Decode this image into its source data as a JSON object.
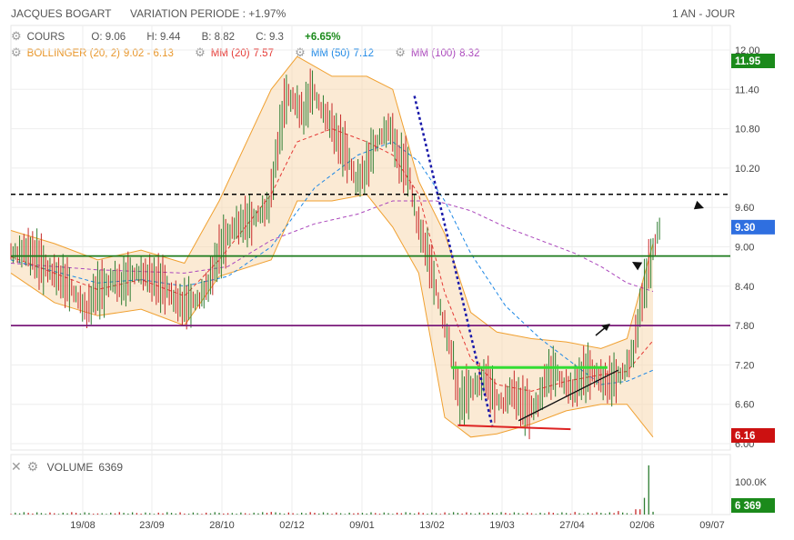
{
  "header": {
    "title": "JACQUES BOGART",
    "variation": "VARIATION PERIODE : +1.97%",
    "period": "1 AN - JOUR"
  },
  "legend": {
    "cours": "COURS",
    "open": "O: 9.06",
    "high": "H: 9.44",
    "low": "B: 8.82",
    "close": "C: 9.3",
    "change": "+6.65%",
    "bollinger": "BOLLINGER (20, 2)",
    "bollinger_vals": "9.02 - 6.13",
    "mm20": "MM (20)",
    "mm20_val": "7.57",
    "mm50": "MM (50)",
    "mm50_val": "7.12",
    "mm100": "MM (100)",
    "mm100_val": "8.32"
  },
  "volume_legend": {
    "label": "VOLUME",
    "value": "6369"
  },
  "colors": {
    "up": "#2e7d32",
    "down": "#c62828",
    "bollinger": "#f0a030",
    "mm20": "#e53935",
    "mm50": "#1e88e5",
    "mm100": "#ab47bc",
    "last_high": "#1b8a1b",
    "last_price": "#2f6fe0",
    "last_low": "#cc1111"
  },
  "badges": {
    "high": "11.95",
    "last": "9.30",
    "low": "6.16",
    "vol_axis": "100.0K",
    "vol_last": "6 369"
  },
  "chart_data": {
    "type": "candlestick",
    "y_ticks": [
      "12.00",
      "11.40",
      "10.80",
      "10.20",
      "9.60",
      "9.00",
      "8.40",
      "7.80",
      "7.20",
      "6.60",
      "6.00"
    ],
    "ylim": [
      6.0,
      12.0
    ],
    "x_ticks": [
      "19/08",
      "23/09",
      "28/10",
      "02/12",
      "09/01",
      "13/02",
      "19/03",
      "27/04",
      "02/06",
      "09/07"
    ],
    "series_close": [
      [
        0,
        8.9
      ],
      [
        4,
        8.95
      ],
      [
        8,
        8.85
      ],
      [
        12,
        8.7
      ],
      [
        16,
        8.6
      ],
      [
        20,
        8.5
      ],
      [
        24,
        8.4
      ],
      [
        28,
        8.2
      ],
      [
        32,
        8.0
      ],
      [
        36,
        8.3
      ],
      [
        40,
        8.35
      ],
      [
        44,
        8.5
      ],
      [
        48,
        8.4
      ],
      [
        52,
        8.55
      ],
      [
        56,
        8.6
      ],
      [
        60,
        8.55
      ],
      [
        64,
        8.45
      ],
      [
        68,
        8.4
      ],
      [
        72,
        8.2
      ],
      [
        76,
        8.1
      ],
      [
        80,
        8.15
      ],
      [
        84,
        8.2
      ],
      [
        88,
        8.4
      ],
      [
        92,
        8.8
      ],
      [
        96,
        9.1
      ],
      [
        100,
        9.3
      ],
      [
        104,
        9.35
      ],
      [
        108,
        9.4
      ],
      [
        112,
        9.5
      ],
      [
        116,
        9.6
      ],
      [
        120,
        10.5
      ],
      [
        124,
        11.3
      ],
      [
        128,
        11.2
      ],
      [
        132,
        11.0
      ],
      [
        136,
        11.4
      ],
      [
        140,
        11.1
      ],
      [
        144,
        10.9
      ],
      [
        148,
        10.6
      ],
      [
        152,
        10.4
      ],
      [
        156,
        10.0
      ],
      [
        160,
        10.1
      ],
      [
        164,
        10.5
      ],
      [
        168,
        10.7
      ],
      [
        172,
        10.8
      ],
      [
        176,
        10.3
      ],
      [
        180,
        10.2
      ],
      [
        184,
        9.4
      ],
      [
        188,
        9.0
      ],
      [
        192,
        8.5
      ],
      [
        196,
        7.9
      ],
      [
        200,
        7.4
      ],
      [
        204,
        6.6
      ],
      [
        208,
        6.8
      ],
      [
        212,
        6.9
      ],
      [
        216,
        7.0
      ],
      [
        220,
        6.7
      ],
      [
        224,
        6.6
      ],
      [
        228,
        6.8
      ],
      [
        232,
        6.6
      ],
      [
        236,
        6.5
      ],
      [
        240,
        6.6
      ],
      [
        244,
        7.0
      ],
      [
        248,
        7.1
      ],
      [
        252,
        6.9
      ],
      [
        256,
        6.8
      ],
      [
        260,
        7.0
      ],
      [
        264,
        7.1
      ],
      [
        268,
        7.0
      ],
      [
        272,
        6.9
      ],
      [
        276,
        7.0
      ],
      [
        280,
        7.1
      ],
      [
        284,
        7.4
      ],
      [
        288,
        8.2
      ],
      [
        292,
        8.8
      ],
      [
        296,
        9.3
      ]
    ],
    "bollinger_upper": [
      [
        0,
        9.25
      ],
      [
        20,
        9.05
      ],
      [
        40,
        8.8
      ],
      [
        60,
        8.95
      ],
      [
        80,
        8.75
      ],
      [
        96,
        9.7
      ],
      [
        120,
        11.4
      ],
      [
        132,
        11.9
      ],
      [
        148,
        11.6
      ],
      [
        164,
        11.6
      ],
      [
        176,
        11.4
      ],
      [
        188,
        10.0
      ],
      [
        200,
        9.2
      ],
      [
        212,
        8.0
      ],
      [
        224,
        7.7
      ],
      [
        240,
        7.6
      ],
      [
        256,
        7.55
      ],
      [
        272,
        7.45
      ],
      [
        284,
        7.6
      ],
      [
        296,
        9.05
      ]
    ],
    "bollinger_lower": [
      [
        0,
        8.6
      ],
      [
        20,
        8.15
      ],
      [
        40,
        7.95
      ],
      [
        60,
        8.05
      ],
      [
        80,
        7.8
      ],
      [
        96,
        8.55
      ],
      [
        120,
        8.8
      ],
      [
        132,
        9.7
      ],
      [
        148,
        9.7
      ],
      [
        164,
        9.8
      ],
      [
        176,
        9.3
      ],
      [
        188,
        8.6
      ],
      [
        200,
        6.4
      ],
      [
        212,
        6.1
      ],
      [
        224,
        6.15
      ],
      [
        240,
        6.3
      ],
      [
        256,
        6.5
      ],
      [
        272,
        6.6
      ],
      [
        284,
        6.6
      ],
      [
        296,
        6.1
      ]
    ],
    "mm20": [
      [
        0,
        8.85
      ],
      [
        20,
        8.6
      ],
      [
        40,
        8.35
      ],
      [
        60,
        8.5
      ],
      [
        80,
        8.25
      ],
      [
        96,
        8.8
      ],
      [
        120,
        9.8
      ],
      [
        132,
        10.6
      ],
      [
        148,
        10.8
      ],
      [
        164,
        10.6
      ],
      [
        176,
        10.4
      ],
      [
        188,
        9.8
      ],
      [
        200,
        8.3
      ],
      [
        212,
        7.3
      ],
      [
        224,
        6.9
      ],
      [
        240,
        6.8
      ],
      [
        256,
        6.95
      ],
      [
        272,
        7.05
      ],
      [
        284,
        7.1
      ],
      [
        296,
        7.57
      ]
    ],
    "mm50": [
      [
        0,
        8.8
      ],
      [
        40,
        8.45
      ],
      [
        60,
        8.5
      ],
      [
        80,
        8.4
      ],
      [
        100,
        8.55
      ],
      [
        120,
        9.0
      ],
      [
        140,
        9.9
      ],
      [
        160,
        10.4
      ],
      [
        176,
        10.6
      ],
      [
        188,
        10.3
      ],
      [
        200,
        9.7
      ],
      [
        212,
        8.9
      ],
      [
        228,
        8.1
      ],
      [
        244,
        7.6
      ],
      [
        260,
        7.2
      ],
      [
        272,
        6.9
      ],
      [
        284,
        6.95
      ],
      [
        296,
        7.12
      ]
    ],
    "mm100": [
      [
        0,
        8.75
      ],
      [
        40,
        8.65
      ],
      [
        80,
        8.6
      ],
      [
        100,
        8.7
      ],
      [
        120,
        9.1
      ],
      [
        140,
        9.35
      ],
      [
        160,
        9.5
      ],
      [
        176,
        9.7
      ],
      [
        196,
        9.7
      ],
      [
        212,
        9.55
      ],
      [
        228,
        9.3
      ],
      [
        244,
        9.1
      ],
      [
        260,
        8.9
      ],
      [
        272,
        8.7
      ],
      [
        284,
        8.45
      ],
      [
        296,
        8.32
      ]
    ],
    "volume": [
      [
        20,
        3000
      ],
      [
        40,
        2500
      ],
      [
        60,
        2000
      ],
      [
        80,
        2200
      ],
      [
        100,
        3000
      ],
      [
        120,
        6000
      ],
      [
        140,
        4000
      ],
      [
        160,
        3500
      ],
      [
        180,
        3000
      ],
      [
        200,
        5000
      ],
      [
        220,
        4000
      ],
      [
        240,
        3000
      ],
      [
        260,
        6000
      ],
      [
        280,
        8000
      ],
      [
        289,
        12000
      ],
      [
        292,
        38000
      ],
      [
        294,
        112000
      ],
      [
        296,
        6369
      ]
    ],
    "hlines": [
      {
        "value": 9.8,
        "color": "#000000",
        "style": "dashed"
      },
      {
        "value": 8.86,
        "color": "#1b7a1b",
        "style": "solid"
      },
      {
        "value": 7.8,
        "color": "#7a1a7a",
        "style": "solid"
      }
    ]
  }
}
